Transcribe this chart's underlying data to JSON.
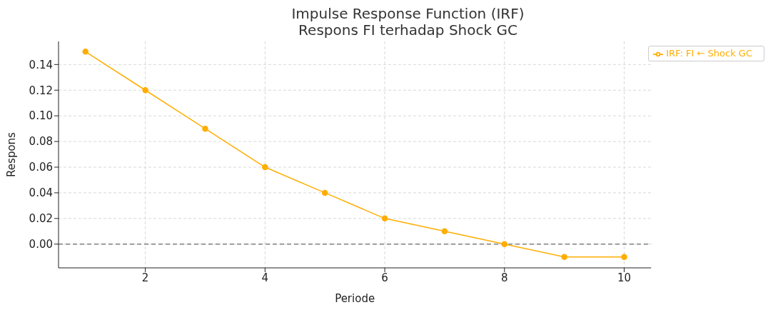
{
  "chart_data": {
    "type": "line",
    "title": "Impulse Response Function (IRF)\nRespons FI terhadap Shock GC",
    "xlabel": "Periode",
    "ylabel": "Respons",
    "x": [
      1,
      2,
      3,
      4,
      5,
      6,
      7,
      8,
      9,
      10
    ],
    "series": [
      {
        "name": "IRF: FI ← Shock GC",
        "color": "#ffad00",
        "values": [
          0.15,
          0.12,
          0.09,
          0.06,
          0.04,
          0.02,
          0.01,
          0.0,
          -0.01,
          -0.01
        ]
      }
    ],
    "xlim": [
      0.55,
      10.45
    ],
    "xticks": [
      2,
      4,
      6,
      8,
      10
    ],
    "ylim": [
      -0.0185,
      0.158
    ],
    "yticks": [
      {
        "value": 0,
        "label": "0.00"
      },
      {
        "value": 0.02,
        "label": "0.02"
      },
      {
        "value": 0.04,
        "label": "0.04"
      },
      {
        "value": 0.06,
        "label": "0.06"
      },
      {
        "value": 0.08,
        "label": "0.08"
      },
      {
        "value": 0.1,
        "label": "0.10"
      },
      {
        "value": 0.12,
        "label": "0.12"
      },
      {
        "value": 0.14,
        "label": "0.14"
      }
    ],
    "ref_lines": [
      {
        "axis": "y",
        "value": 0,
        "color": "#808080",
        "line_style": "dashed"
      }
    ],
    "grid": true,
    "legend": "top right",
    "marker": "circle",
    "line_style": "solid"
  }
}
